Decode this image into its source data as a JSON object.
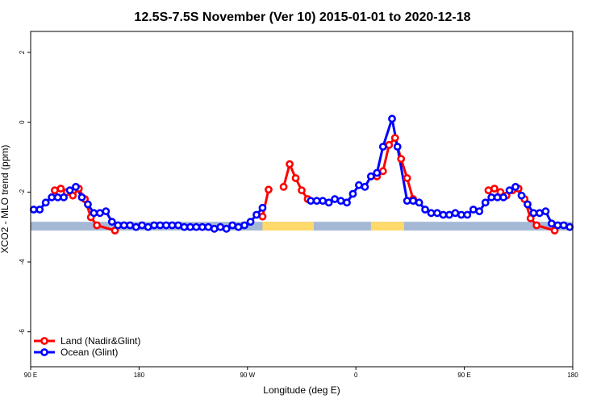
{
  "chart_data": {
    "type": "line",
    "title": "12.5S-7.5S November (Ver 10)   2015-01-01 to 2020-12-18",
    "xlabel": "Longitude (deg E)",
    "ylabel": "XCO2 - MLO trend (ppm)",
    "xlim": [
      90,
      540
    ],
    "ylim": [
      -7.0,
      2.6
    ],
    "x_ticks": [
      {
        "value": 90,
        "label": "90 E"
      },
      {
        "value": 180,
        "label": "180"
      },
      {
        "value": 270,
        "label": "90 W"
      },
      {
        "value": 360,
        "label": "0"
      },
      {
        "value": 450,
        "label": "90 E"
      },
      {
        "value": 540,
        "label": "180"
      }
    ],
    "y_ticks": [
      {
        "value": 2,
        "label": "2"
      },
      {
        "value": 0,
        "label": "0"
      },
      {
        "value": -2,
        "label": "-2"
      },
      {
        "value": -4,
        "label": "-4"
      },
      {
        "value": -6,
        "label": "-6"
      }
    ],
    "band": {
      "y_min": -3.1,
      "y_max": -2.85,
      "ocean_color": "#a5b8d6",
      "land_color": "#ffd96a",
      "land_segments": [
        [
          282.5,
          325
        ],
        [
          372.5,
          400
        ]
      ]
    },
    "legend_position": "bottom-left",
    "series": [
      {
        "name": "Land (Nadir&Glint)",
        "color": "#ff0000",
        "segments": [
          [
            [
              110,
              -1.95
            ],
            [
              115,
              -1.9
            ],
            [
              120,
              -2.0
            ],
            [
              125,
              -2.1
            ],
            [
              130,
              -1.9
            ],
            [
              135,
              -2.2
            ],
            [
              140,
              -2.72
            ],
            [
              145,
              -2.95
            ],
            [
              160,
              -3.1
            ]
          ],
          [
            [
              282.5,
              -2.7
            ],
            [
              287.5,
              -1.93
            ]
          ],
          [
            [
              300,
              -1.85
            ],
            [
              305,
              -1.2
            ],
            [
              310,
              -1.6
            ],
            [
              315,
              -1.95
            ],
            [
              320,
              -2.2
            ]
          ],
          [
            [
              377.5,
              -1.55
            ],
            [
              382.5,
              -1.4
            ],
            [
              387.5,
              -0.65
            ],
            [
              392.5,
              -0.45
            ],
            [
              397.5,
              -1.05
            ],
            [
              402.5,
              -1.6
            ],
            [
              407.5,
              -2.2
            ]
          ],
          [
            [
              470,
              -1.95
            ],
            [
              475,
              -1.9
            ],
            [
              480,
              -2.0
            ],
            [
              485,
              -2.1
            ],
            [
              490,
              -1.95
            ],
            [
              495,
              -1.9
            ],
            [
              500,
              -2.2
            ],
            [
              505,
              -2.75
            ],
            [
              510,
              -2.95
            ],
            [
              525,
              -3.1
            ]
          ]
        ]
      },
      {
        "name": "Ocean (Glint)",
        "color": "#0000ff",
        "segments": [
          [
            [
              92.5,
              -2.5
            ],
            [
              97.5,
              -2.5
            ],
            [
              102.5,
              -2.3
            ],
            [
              107.5,
              -2.15
            ],
            [
              112.5,
              -2.15
            ],
            [
              117.5,
              -2.15
            ],
            [
              122.5,
              -1.95
            ],
            [
              127.5,
              -1.85
            ],
            [
              132.5,
              -2.15
            ],
            [
              137.5,
              -2.35
            ],
            [
              142.5,
              -2.6
            ],
            [
              147.5,
              -2.6
            ],
            [
              152.5,
              -2.55
            ],
            [
              157.5,
              -2.85
            ],
            [
              162.5,
              -2.95
            ],
            [
              167.5,
              -2.95
            ],
            [
              172.5,
              -2.95
            ],
            [
              177.5,
              -3.0
            ],
            [
              182.5,
              -2.95
            ],
            [
              187.5,
              -3.0
            ],
            [
              192.5,
              -2.95
            ],
            [
              197.5,
              -2.95
            ],
            [
              202.5,
              -2.95
            ],
            [
              207.5,
              -2.95
            ],
            [
              212.5,
              -2.95
            ],
            [
              217.5,
              -3.0
            ],
            [
              222.5,
              -3.0
            ],
            [
              227.5,
              -3.0
            ],
            [
              232.5,
              -3.0
            ],
            [
              237.5,
              -3.0
            ],
            [
              242.5,
              -3.05
            ],
            [
              247.5,
              -3.0
            ],
            [
              252.5,
              -3.05
            ],
            [
              257.5,
              -2.95
            ],
            [
              262.5,
              -3.0
            ],
            [
              267.5,
              -2.95
            ],
            [
              272.5,
              -2.85
            ],
            [
              277.5,
              -2.65
            ],
            [
              282.5,
              -2.45
            ]
          ],
          [
            [
              322.5,
              -2.25
            ],
            [
              327.5,
              -2.25
            ],
            [
              332.5,
              -2.25
            ],
            [
              337.5,
              -2.3
            ],
            [
              342.5,
              -2.2
            ],
            [
              347.5,
              -2.25
            ],
            [
              352.5,
              -2.3
            ],
            [
              357.5,
              -2.05
            ],
            [
              362.5,
              -1.8
            ],
            [
              367.5,
              -1.85
            ],
            [
              372.5,
              -1.55
            ],
            [
              377.5,
              -1.45
            ],
            [
              382.5,
              -0.7
            ],
            [
              390,
              0.1
            ],
            [
              394.5,
              -0.7
            ],
            [
              402.5,
              -2.25
            ],
            [
              407.5,
              -2.25
            ],
            [
              412.5,
              -2.3
            ],
            [
              417.5,
              -2.5
            ],
            [
              422.5,
              -2.6
            ],
            [
              427.5,
              -2.6
            ],
            [
              432.5,
              -2.65
            ],
            [
              437.5,
              -2.65
            ],
            [
              442.5,
              -2.6
            ],
            [
              447.5,
              -2.65
            ],
            [
              452.5,
              -2.65
            ],
            [
              457.5,
              -2.5
            ],
            [
              462.5,
              -2.55
            ],
            [
              467.5,
              -2.3
            ],
            [
              472.5,
              -2.15
            ],
            [
              477.5,
              -2.15
            ],
            [
              482.5,
              -2.15
            ],
            [
              487.5,
              -1.95
            ],
            [
              492.5,
              -1.85
            ],
            [
              497.5,
              -2.1
            ],
            [
              502.5,
              -2.35
            ],
            [
              507.5,
              -2.6
            ],
            [
              512.5,
              -2.6
            ],
            [
              517.5,
              -2.55
            ],
            [
              522.5,
              -2.9
            ],
            [
              527.5,
              -2.95
            ],
            [
              532.5,
              -2.95
            ],
            [
              537.5,
              -3.0
            ]
          ]
        ]
      }
    ]
  }
}
